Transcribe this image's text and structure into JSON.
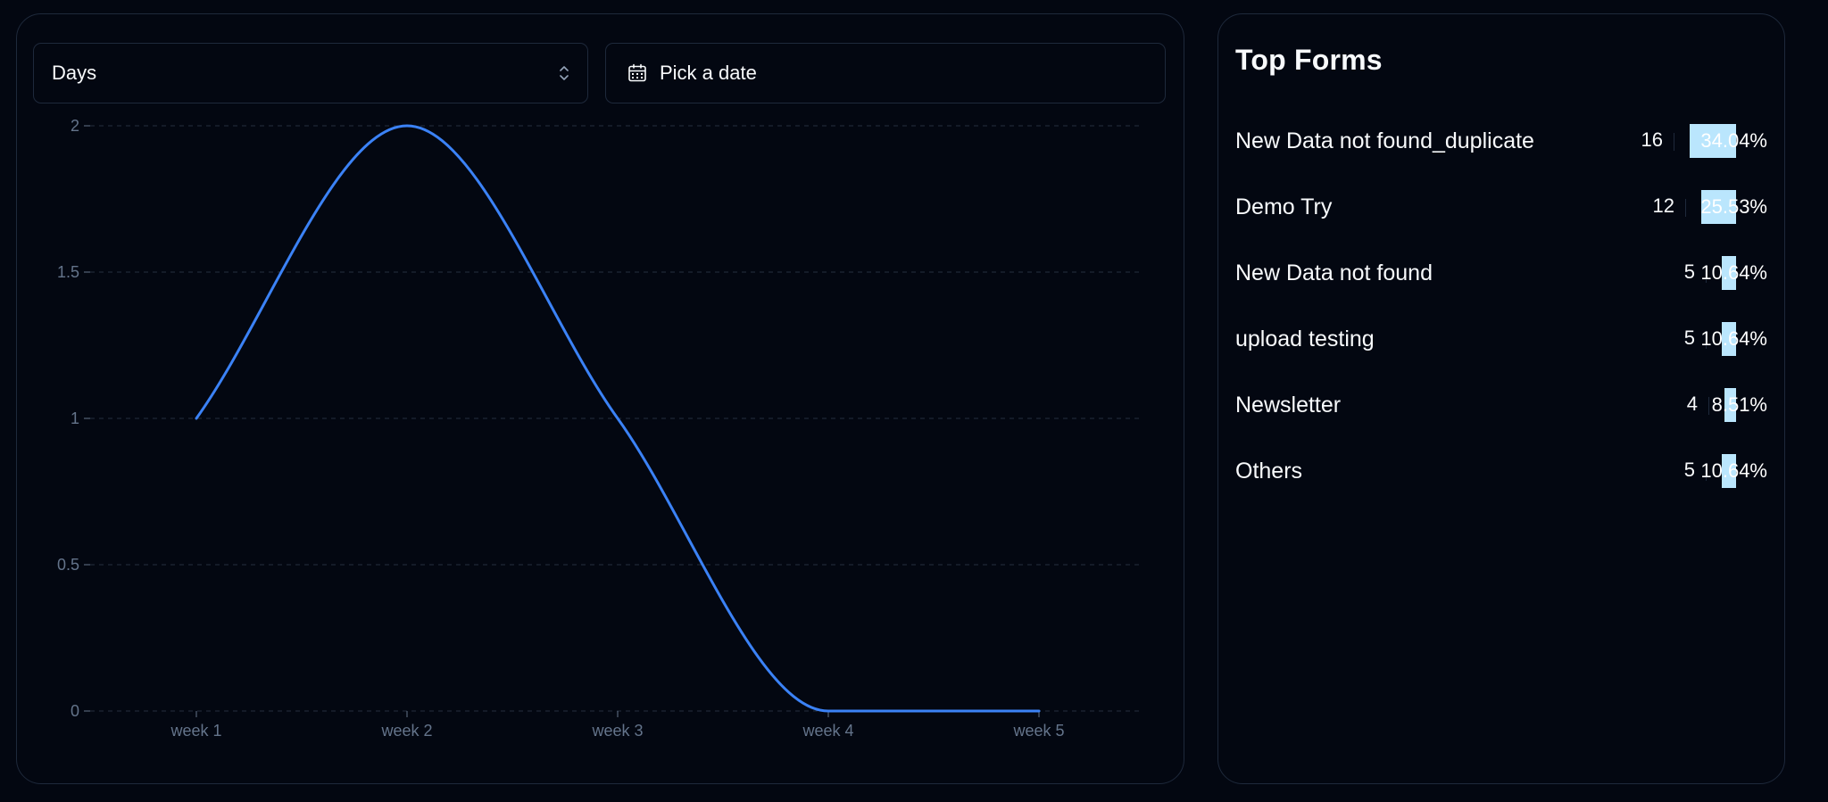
{
  "controls": {
    "period_select": {
      "value": "Days"
    },
    "date_picker": {
      "label": "Pick a date"
    }
  },
  "chart_data": {
    "type": "line",
    "categories": [
      "week 1",
      "week 2",
      "week 3",
      "week 4",
      "week 5"
    ],
    "series": [
      {
        "values": [
          1,
          2,
          1,
          0,
          0
        ],
        "color": "#3b82f6"
      }
    ],
    "ylim": [
      0,
      2
    ],
    "yticks": [
      "0",
      "0.5",
      "1",
      "1.5",
      "2"
    ],
    "ytick_values": [
      0,
      0.5,
      1,
      1.5,
      2
    ],
    "grid": "horizontal dashed",
    "curve": "smooth"
  },
  "top_forms": {
    "title": "Top Forms",
    "items": [
      {
        "name": "New Data not found_duplicate",
        "count": "16",
        "percent": "34.04%",
        "fraction": 0.3404
      },
      {
        "name": "Demo Try",
        "count": "12",
        "percent": "25.53%",
        "fraction": 0.2553
      },
      {
        "name": "New Data not found",
        "count": "5",
        "percent": "10.64%",
        "fraction": 0.1064
      },
      {
        "name": "upload testing",
        "count": "5",
        "percent": "10.64%",
        "fraction": 0.1064
      },
      {
        "name": "Newsletter",
        "count": "4",
        "percent": "8.51%",
        "fraction": 0.0851
      },
      {
        "name": "Others",
        "count": "5",
        "percent": "10.64%",
        "fraction": 0.1064
      }
    ]
  }
}
